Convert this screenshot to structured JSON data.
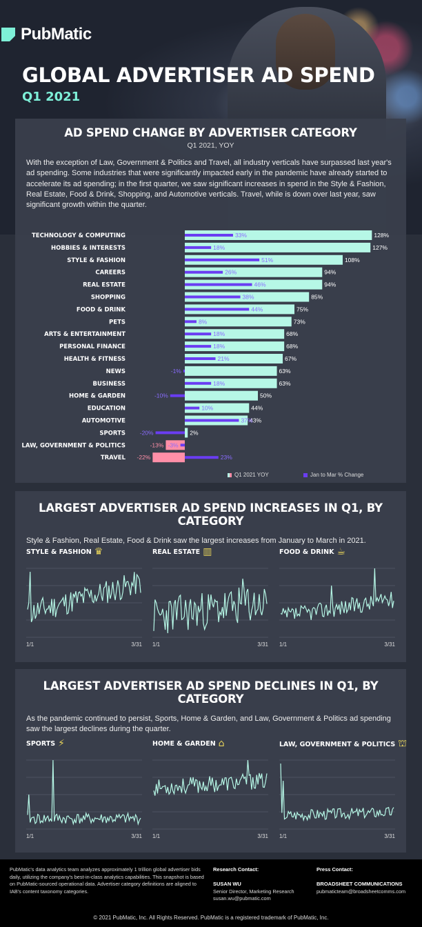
{
  "brand": {
    "name": "PubMatic",
    "accent": "#7ef0d8"
  },
  "header": {
    "title": "GLOBAL ADVERTISER AD SPEND",
    "subtitle": "Q1 2021"
  },
  "section1": {
    "title": "AD SPEND CHANGE BY ADVERTISER CATEGORY",
    "subtitle": "Q1 2021, YOY",
    "intro": "With the exception of Law, Government & Politics and Travel, all industry verticals have surpassed last year's ad spending. Some industries that were significantly impacted early in the pandemic have already started to accelerate its ad spending; in the first quarter, we saw significant increases in spend in the Style & Fashion, Real Estate, Food & Drink, Shopping, and Automotive verticals. Travel, while is down over last year, saw significant growth within the quarter.",
    "legend_yoy": "Q1 2021 YOY",
    "legend_mom": "Jan to Mar % Change"
  },
  "chart_data": {
    "type": "bar",
    "orientation": "horizontal",
    "title": "AD SPEND CHANGE BY ADVERTISER CATEGORY",
    "categories": [
      "TECHNOLOGY & COMPUTING",
      "HOBBIES & INTERESTS",
      "STYLE & FASHION",
      "CAREERS",
      "REAL ESTATE",
      "SHOPPING",
      "FOOD & DRINK",
      "PETS",
      "ARTS & ENTERTAINMENT",
      "PERSONAL FINANCE",
      "HEALTH & FITNESS",
      "NEWS",
      "BUSINESS",
      "HOME & GARDEN",
      "EDUCATION",
      "AUTOMOTIVE",
      "SPORTS",
      "LAW, GOVERNMENT & POLITICS",
      "TRAVEL"
    ],
    "series": [
      {
        "name": "Q1 2021 YOY",
        "color": "#b6f7e6",
        "negColor": "#ff8fa8",
        "values": [
          128,
          127,
          108,
          94,
          94,
          85,
          75,
          73,
          68,
          68,
          67,
          63,
          63,
          50,
          44,
          43,
          2,
          -13,
          -22
        ]
      },
      {
        "name": "Jan to Mar % Change",
        "color": "#6a3df2",
        "values": [
          33,
          18,
          51,
          26,
          46,
          38,
          44,
          8,
          18,
          18,
          21,
          -1,
          18,
          -10,
          10,
          37,
          -20,
          -3,
          23
        ]
      }
    ],
    "labels_yoy": [
      "128%",
      "127%",
      "108%",
      "94%",
      "94%",
      "85%",
      "75%",
      "73%",
      "68%",
      "68%",
      "67%",
      "63%",
      "63%",
      "50%",
      "44%",
      "43%",
      "2%",
      "-13%",
      "-22%"
    ],
    "labels_mom": [
      "33%",
      "18%",
      "51%",
      "26%",
      "46%",
      "38%",
      "44%",
      "8%",
      "18%",
      "18%",
      "21%",
      "-1%",
      "18%",
      "-10%",
      "10%",
      "37%",
      "-20%",
      "-3%",
      "23%"
    ]
  },
  "section2": {
    "title": "LARGEST ADVERTISER AD SPEND INCREASES IN Q1, BY CATEGORY",
    "intro": "Style & Fashion, Real Estate, Food & Drink saw the largest increases from January to March in 2021.",
    "charts": [
      {
        "label": "STYLE & FASHION",
        "icon": "fashion-icon",
        "start": "1/1",
        "end": "3/31"
      },
      {
        "label": "REAL ESTATE",
        "icon": "building-icon",
        "start": "1/1",
        "end": "3/31"
      },
      {
        "label": "FOOD & DRINK",
        "icon": "food-icon",
        "start": "1/1",
        "end": "3/31"
      }
    ]
  },
  "section3": {
    "title": "LARGEST ADVERTISER AD SPEND DECLINES IN Q1, BY CATEGORY",
    "intro": "As the pandemic continued to persist, Sports, Home & Garden, and Law, Government & Politics ad spending saw the largest declines during the quarter.",
    "charts": [
      {
        "label": "SPORTS",
        "icon": "runner-icon",
        "start": "1/1",
        "end": "3/31"
      },
      {
        "label": "HOME & GARDEN",
        "icon": "house-icon",
        "start": "1/1",
        "end": "3/31"
      },
      {
        "label": "LAW, GOVERNMENT & POLITICS",
        "icon": "courthouse-icon",
        "start": "1/1",
        "end": "3/31"
      }
    ]
  },
  "footer": {
    "about": "PubMatic's data analytics team analyzes approximately 1 trillion global advertiser bids daily, utilizing the company's best-in-class analytics capabilities. This snapshot is based on PubMatic-sourced operational data. Advertiser category definitions are aligned to IAB's content taxonomy categories.",
    "research_heading": "Research Contact:",
    "research_name": "SUSAN WU",
    "research_title": "Senior Director, Marketing Research",
    "research_email": "susan.wu@pubmatic.com",
    "press_heading": "Press Contact:",
    "press_name": "BROADSHEET COMMUNICATIONS",
    "press_email": "pubmaticteam@broadsheetcomms.com",
    "copyright": "© 2021 PubMatic, Inc. All Rights Reserved. PubMatic is a registered trademark of PubMatic, Inc."
  }
}
